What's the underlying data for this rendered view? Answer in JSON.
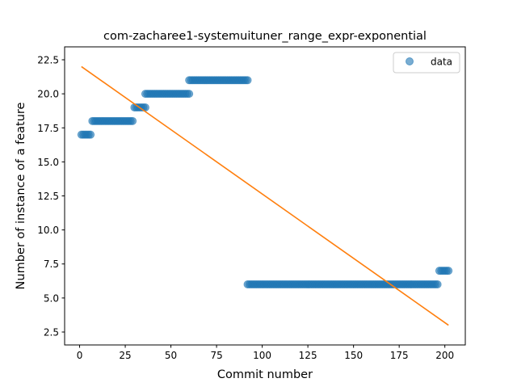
{
  "chart_data": {
    "type": "scatter",
    "title": "com-zacharee1-systemuituner_range_expr-exponential",
    "xlabel": "Commit number",
    "ylabel": "Number of instance of a feature",
    "xlim": [
      -8.2,
      211.2
    ],
    "ylim": [
      1.55,
      23.45
    ],
    "grid": false,
    "legend_position": "top-right",
    "x_ticks": [
      0,
      25,
      50,
      75,
      100,
      125,
      150,
      175,
      200
    ],
    "y_ticks": [
      2.5,
      5.0,
      7.5,
      10.0,
      12.5,
      15.0,
      17.5,
      20.0,
      22.5
    ],
    "x_tick_labels": [
      "0",
      "25",
      "50",
      "75",
      "100",
      "125",
      "150",
      "175",
      "200"
    ],
    "y_tick_labels": [
      "2.5",
      "5.0",
      "7.5",
      "10.0",
      "12.5",
      "15.0",
      "17.5",
      "20.0",
      "22.5"
    ],
    "series": [
      {
        "name": "data",
        "kind": "scatter",
        "color": "#1f77b4",
        "segments": [
          {
            "x_start": 1,
            "x_end": 6,
            "y": 17
          },
          {
            "x_start": 7,
            "x_end": 29,
            "y": 18
          },
          {
            "x_start": 30,
            "x_end": 36,
            "y": 19
          },
          {
            "x_start": 36,
            "x_end": 60,
            "y": 20
          },
          {
            "x_start": 60,
            "x_end": 92,
            "y": 21
          },
          {
            "x_start": 92,
            "x_end": 196,
            "y": 6
          },
          {
            "x_start": 197,
            "x_end": 202,
            "y": 7
          }
        ]
      },
      {
        "name": "",
        "kind": "line",
        "color": "#ff7f0e",
        "x": [
          1,
          202
        ],
        "y": [
          22,
          3
        ]
      }
    ]
  }
}
